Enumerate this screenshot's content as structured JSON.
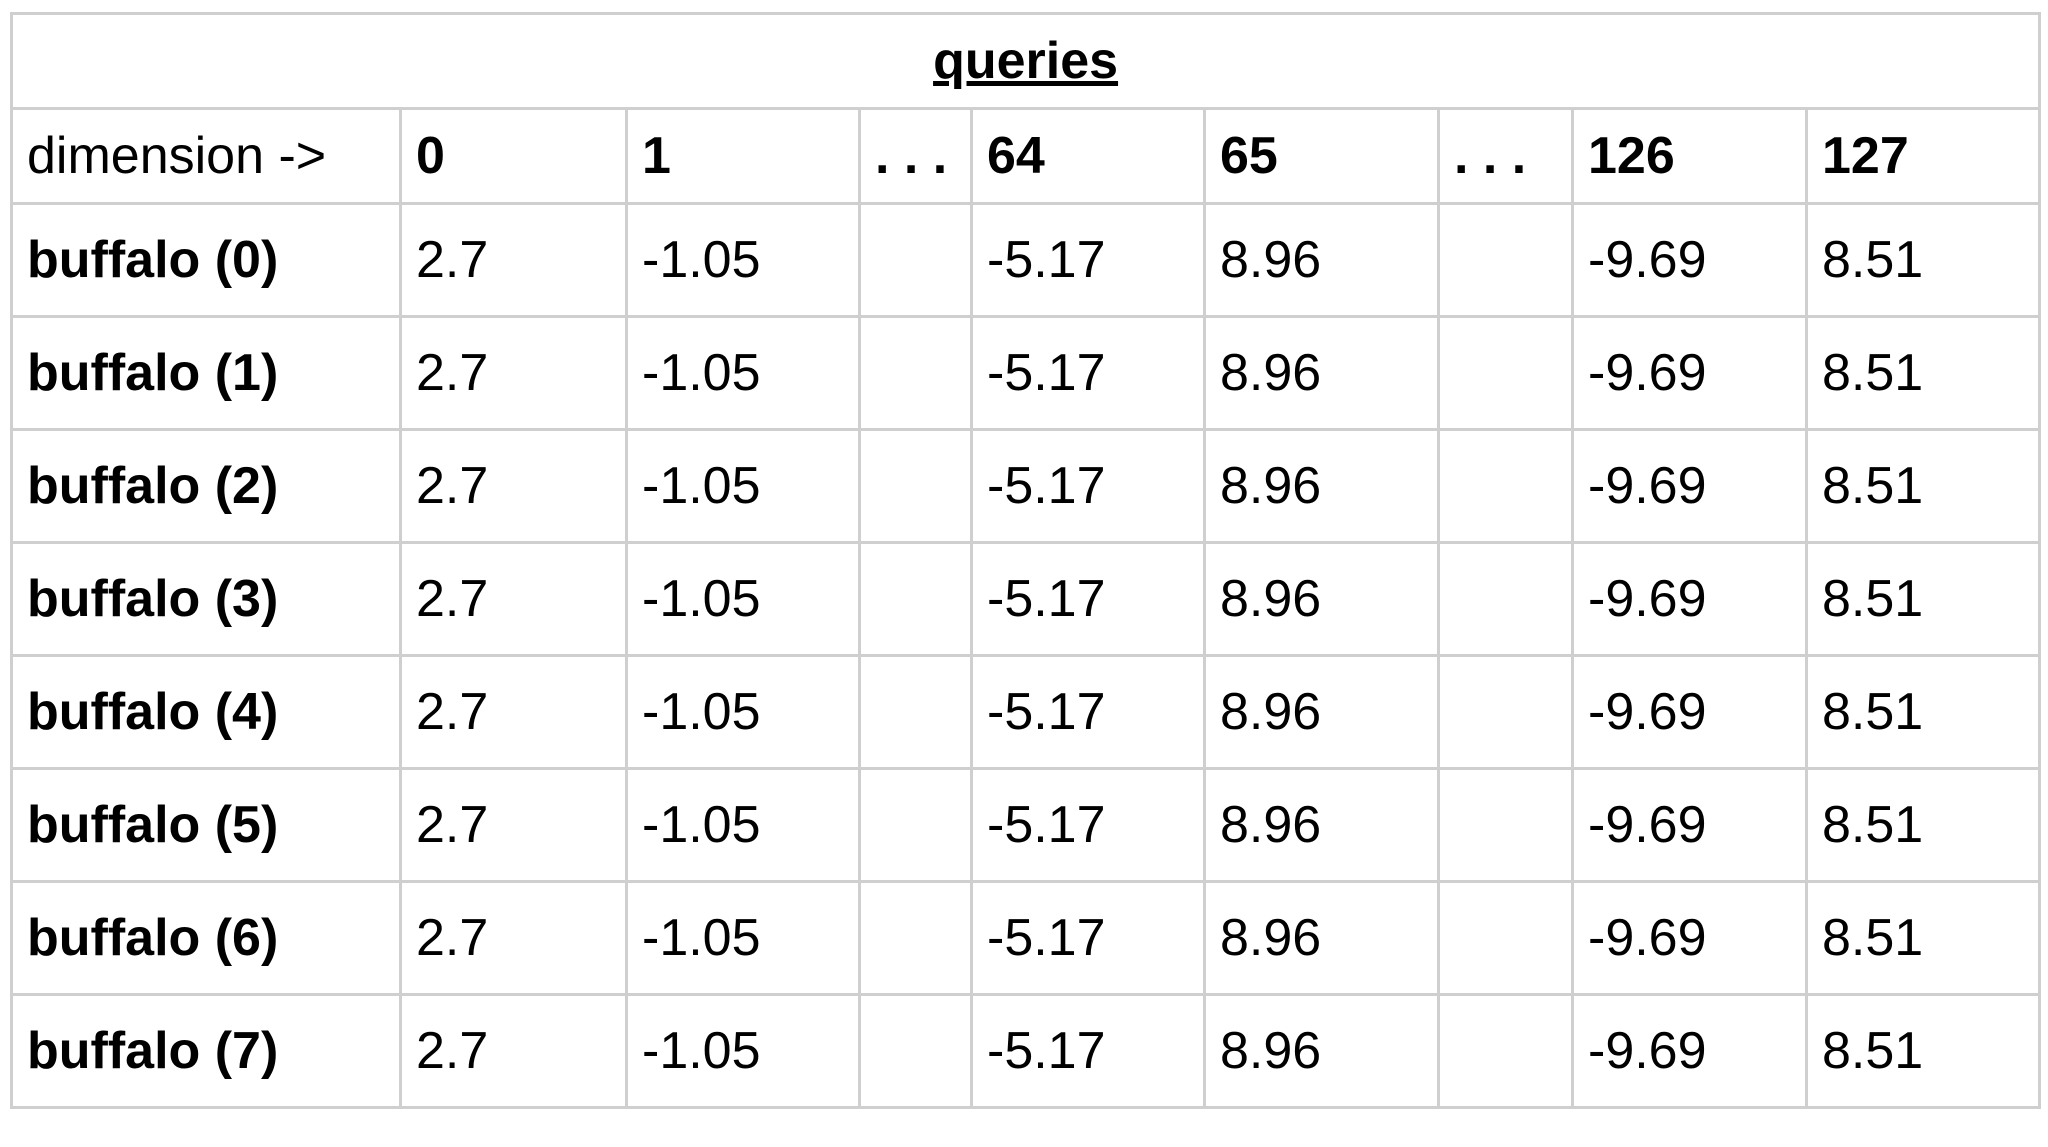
{
  "table": {
    "title": "queries",
    "header": [
      "dimension ->",
      "0",
      "1",
      ". . .",
      "64",
      "65",
      ". . .",
      "126",
      "127"
    ],
    "rows": [
      [
        "buffalo (0)",
        "2.7",
        "-1.05",
        null,
        "-5.17",
        "8.96",
        null,
        "-9.69",
        "8.51"
      ],
      [
        "buffalo (1)",
        "2.7",
        "-1.05",
        null,
        "-5.17",
        "8.96",
        null,
        "-9.69",
        "8.51"
      ],
      [
        "buffalo (2)",
        "2.7",
        "-1.05",
        null,
        "-5.17",
        "8.96",
        null,
        "-9.69",
        "8.51"
      ],
      [
        "buffalo (3)",
        "2.7",
        "-1.05",
        null,
        "-5.17",
        "8.96",
        null,
        "-9.69",
        "8.51"
      ],
      [
        "buffalo (4)",
        "2.7",
        "-1.05",
        null,
        "-5.17",
        "8.96",
        null,
        "-9.69",
        "8.51"
      ],
      [
        "buffalo (5)",
        "2.7",
        "-1.05",
        null,
        "-5.17",
        "8.96",
        null,
        "-9.69",
        "8.51"
      ],
      [
        "buffalo (6)",
        "2.7",
        "-1.05",
        null,
        "-5.17",
        "8.96",
        null,
        "-9.69",
        "8.51"
      ],
      [
        "buffalo (7)",
        "2.7",
        "-1.05",
        null,
        "-5.17",
        "8.96",
        null,
        "-9.69",
        "8.51"
      ]
    ]
  }
}
